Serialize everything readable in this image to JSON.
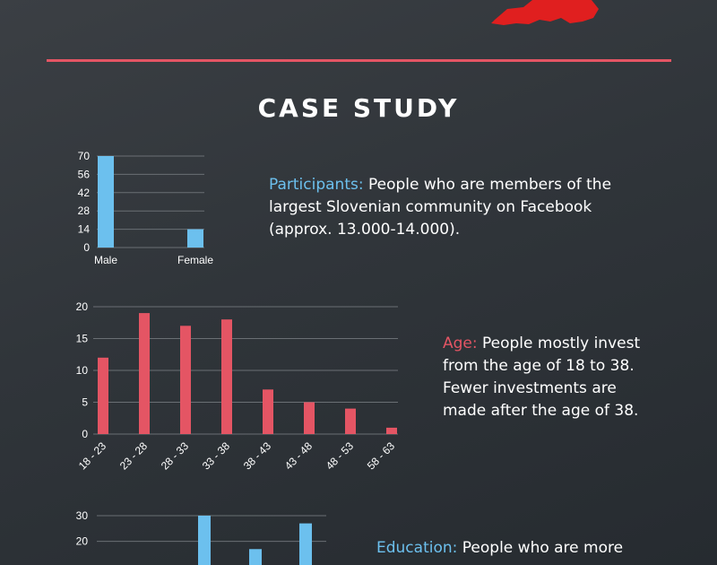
{
  "heading": "CASE STUDY",
  "colors": {
    "accent_red": "#e45564",
    "accent_blue": "#6cc0ee",
    "map_red": "#e01f1f"
  },
  "sections": {
    "participants": {
      "label": "Participants:",
      "text": " People who are members of the largest Slovenian community on Facebook (approx. 13.000-14.000)."
    },
    "age": {
      "label": "Age:",
      "text": " People mostly invest from the age of 18 to 38. Fewer investments are made after the age of 38."
    },
    "education": {
      "label": "Education:",
      "text": " People who are more"
    }
  },
  "chart_data": [
    {
      "type": "bar",
      "categories": [
        "Male",
        "Female"
      ],
      "values": [
        70,
        14
      ],
      "ylim": [
        0,
        70
      ],
      "yticks": [
        0,
        14,
        28,
        42,
        56,
        70
      ],
      "color": "#6cc0ee",
      "grid": true
    },
    {
      "type": "bar",
      "categories": [
        "18 - 23",
        "23 - 28",
        "28 - 33",
        "33 - 38",
        "38 - 43",
        "43 - 48",
        "48 - 53",
        "58 - 63"
      ],
      "values": [
        12,
        19,
        17,
        18,
        7,
        5,
        4,
        1
      ],
      "ylim": [
        0,
        20
      ],
      "yticks": [
        0,
        5,
        10,
        15,
        20
      ],
      "color": "#e45564",
      "grid": true
    },
    {
      "type": "bar",
      "values": [
        30,
        17,
        27
      ],
      "ylim": [
        0,
        30
      ],
      "yticks": [
        20,
        30
      ],
      "color": "#6cc0ee",
      "grid": true
    }
  ]
}
